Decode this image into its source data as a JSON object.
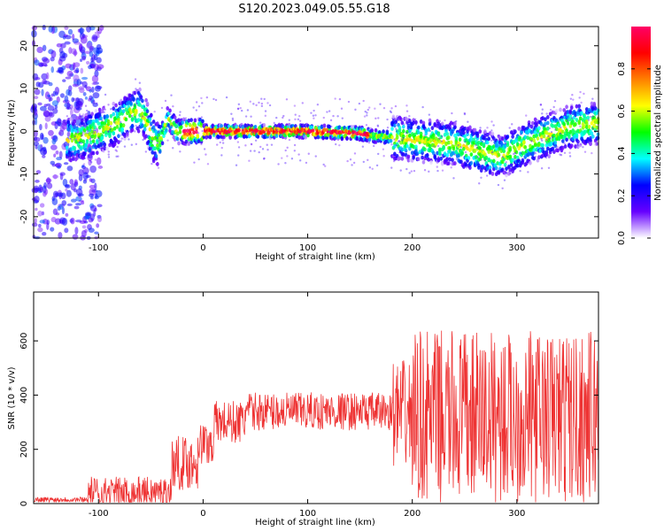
{
  "figure": {
    "title": "S120.2023.049.05.55.G18"
  },
  "chart_data": [
    {
      "type": "heatmap",
      "xlabel": "Height of straight line (km)",
      "ylabel": "Frequency (Hz)",
      "xlim": [
        -162,
        378
      ],
      "ylim": [
        -25,
        24.5
      ],
      "xticks": [
        -100,
        0,
        100,
        200,
        300
      ],
      "yticks": [
        -20,
        -10,
        0,
        10,
        20
      ],
      "ridge": [
        [
          -125,
          -2
        ],
        [
          -110,
          -1
        ],
        [
          -100,
          0
        ],
        [
          -90,
          1
        ],
        [
          -80,
          2
        ],
        [
          -70,
          4
        ],
        [
          -60,
          5
        ],
        [
          -55,
          3
        ],
        [
          -48,
          -2
        ],
        [
          -42,
          -3
        ],
        [
          -38,
          0
        ],
        [
          -33,
          3
        ],
        [
          -30,
          2
        ],
        [
          -25,
          0
        ],
        [
          0,
          0
        ],
        [
          50,
          0
        ],
        [
          100,
          0
        ],
        [
          150,
          -0.5
        ],
        [
          160,
          -1
        ],
        [
          200,
          -2
        ],
        [
          240,
          -3
        ],
        [
          270,
          -5
        ],
        [
          285,
          -6
        ],
        [
          300,
          -4
        ],
        [
          330,
          -1
        ],
        [
          350,
          1
        ],
        [
          378,
          2
        ]
      ],
      "colorbar": {
        "label": "Normalized spectral amplitude",
        "ticks": [
          "0.0",
          "0.2",
          "0.4",
          "0.6",
          "0.8"
        ],
        "range": [
          0,
          1
        ],
        "colors": [
          "#ffffff",
          "#6600ff",
          "#0000ff",
          "#00ffff",
          "#00ff00",
          "#ffff00",
          "#ff8000",
          "#ff0000",
          "#ff0066"
        ]
      }
    },
    {
      "type": "line",
      "xlabel": "Height of straight line (km)",
      "ylabel": "SNR (10 * v/v)",
      "xlim": [
        -162,
        378
      ],
      "ylim": [
        0,
        780
      ],
      "xticks": [
        -100,
        0,
        100,
        200,
        300
      ],
      "yticks": [
        0,
        200,
        400,
        600
      ],
      "series": [
        {
          "color": "#ee3333",
          "segments": [
            {
              "x0": -162,
              "x1": -110,
              "base": 15,
              "amp": 10
            },
            {
              "x0": -110,
              "x1": -30,
              "base": 40,
              "amp": 60
            },
            {
              "x0": -30,
              "x1": -5,
              "base": 150,
              "amp": 100
            },
            {
              "x0": -5,
              "x1": 10,
              "base": 220,
              "amp": 80
            },
            {
              "x0": 10,
              "x1": 40,
              "base": 300,
              "amp": 80
            },
            {
              "x0": 40,
              "x1": 180,
              "base": 340,
              "amp": 70
            },
            {
              "x0": 180,
              "x1": 200,
              "base": 330,
              "amp": 200
            },
            {
              "x0": 200,
              "x1": 378,
              "base": 320,
              "amp": 320
            }
          ]
        }
      ]
    }
  ]
}
